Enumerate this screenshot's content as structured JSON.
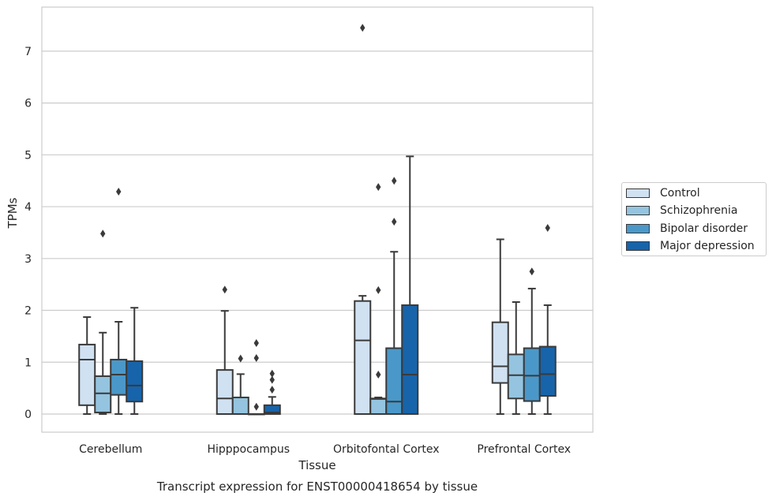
{
  "chart_data": {
    "type": "box",
    "title": "Transcript expression for ENST00000418654 by tissue",
    "xlabel": "Tissue",
    "ylabel": "TPMs",
    "ylim": [
      -0.35,
      7.85
    ],
    "yticks": [
      0,
      1,
      2,
      3,
      4,
      5,
      6,
      7
    ],
    "grid": "horizontal",
    "legend_position": "right",
    "categories": [
      "Cerebellum",
      "Hipppocampus",
      "Orbitofontal Cortex",
      "Prefrontal Cortex"
    ],
    "series": [
      {
        "name": "Control",
        "color": "#d0e1f2",
        "boxes": [
          {
            "whisker_low": 0,
            "q1": 0.17,
            "median": 1.05,
            "q3": 1.34,
            "whisker_high": 1.87,
            "outliers": []
          },
          {
            "whisker_low": 0,
            "q1": 0,
            "median": 0.3,
            "q3": 0.85,
            "whisker_high": 1.99,
            "outliers": [
              2.4
            ]
          },
          {
            "whisker_low": 0,
            "q1": 0,
            "median": 1.42,
            "q3": 2.18,
            "whisker_high": 2.28,
            "outliers": [
              7.45
            ]
          },
          {
            "whisker_low": 0,
            "q1": 0.6,
            "median": 0.92,
            "q3": 1.77,
            "whisker_high": 3.37,
            "outliers": []
          }
        ]
      },
      {
        "name": "Schizophrenia",
        "color": "#94c4df",
        "boxes": [
          {
            "whisker_low": 0,
            "q1": 0.03,
            "median": 0.4,
            "q3": 0.73,
            "whisker_high": 1.57,
            "outliers": [
              3.48
            ]
          },
          {
            "whisker_low": 0,
            "q1": 0,
            "median": 0,
            "q3": 0.32,
            "whisker_high": 0.77,
            "outliers": [
              1.07
            ]
          },
          {
            "whisker_low": 0,
            "q1": 0,
            "median": 0.29,
            "q3": 0.3,
            "whisker_high": 0.32,
            "outliers": [
              0.76,
              2.39,
              4.38
            ]
          },
          {
            "whisker_low": 0,
            "q1": 0.3,
            "median": 0.75,
            "q3": 1.15,
            "whisker_high": 2.16,
            "outliers": []
          }
        ]
      },
      {
        "name": "Bipolar disorder",
        "color": "#4a98c9",
        "boxes": [
          {
            "whisker_low": 0,
            "q1": 0.37,
            "median": 0.76,
            "q3": 1.05,
            "whisker_high": 1.78,
            "outliers": [
              4.29
            ]
          },
          {
            "whisker_low": 0,
            "q1": 0,
            "median": 0,
            "q3": 0,
            "whisker_high": 0,
            "outliers": [
              0.14,
              1.08,
              1.37
            ]
          },
          {
            "whisker_low": 0,
            "q1": 0,
            "median": 0.24,
            "q3": 1.27,
            "whisker_high": 3.13,
            "outliers": [
              3.71,
              4.5
            ]
          },
          {
            "whisker_low": 0,
            "q1": 0.25,
            "median": 0.74,
            "q3": 1.27,
            "whisker_high": 2.42,
            "outliers": [
              2.75
            ]
          }
        ]
      },
      {
        "name": "Major depression",
        "color": "#1764ab",
        "boxes": [
          {
            "whisker_low": 0,
            "q1": 0.24,
            "median": 0.55,
            "q3": 1.02,
            "whisker_high": 2.05,
            "outliers": []
          },
          {
            "whisker_low": 0,
            "q1": 0,
            "median": 0.03,
            "q3": 0.17,
            "whisker_high": 0.33,
            "outliers": [
              0.47,
              0.66,
              0.78
            ]
          },
          {
            "whisker_low": 0,
            "q1": 0,
            "median": 0.76,
            "q3": 2.1,
            "whisker_high": 4.97,
            "outliers": []
          },
          {
            "whisker_low": 0,
            "q1": 0.35,
            "median": 0.77,
            "q3": 1.3,
            "whisker_high": 2.1,
            "outliers": [
              3.59
            ]
          }
        ]
      }
    ]
  }
}
